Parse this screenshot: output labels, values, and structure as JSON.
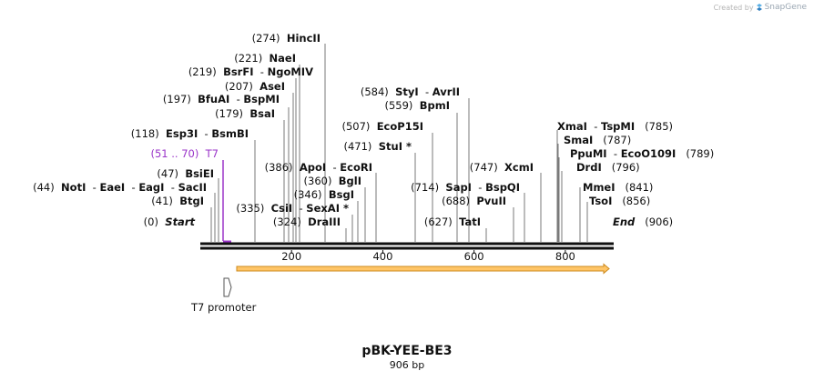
{
  "credit": {
    "prefix": "Created by",
    "brand": "SnapGene"
  },
  "plasmid": {
    "name": "pBK-YEE-BE3",
    "length_label": "906 bp",
    "length": 906
  },
  "axis": {
    "ticks": [
      "200",
      "400",
      "600",
      "800"
    ]
  },
  "colors": {
    "feature": "#9a34c9",
    "orf_fill": "#ffc567",
    "orf_stroke": "#cc8a1c",
    "line": "#111111"
  },
  "left_labels": [
    {
      "pos": "(274)",
      "parts": [
        "HincII"
      ]
    },
    {
      "pos": "(221)",
      "parts": [
        "NaeI"
      ]
    },
    {
      "pos": "(219)",
      "parts": [
        "BsrFI",
        "NgoMIV"
      ]
    },
    {
      "pos": "(207)",
      "parts": [
        "AseI"
      ]
    },
    {
      "pos": "(197)",
      "parts": [
        "BfuAI",
        "BspMI"
      ]
    },
    {
      "pos": "(179)",
      "parts": [
        "BsaI"
      ]
    },
    {
      "pos": "(118)",
      "parts": [
        "Esp3I",
        "BsmBI"
      ]
    },
    {
      "pos": "(47)",
      "parts": [
        "BsiEI"
      ]
    },
    {
      "pos": "(44)",
      "parts": [
        "NotI",
        "EaeI",
        "EagI",
        "SacII"
      ]
    },
    {
      "pos": "(41)",
      "parts": [
        "BtgI"
      ]
    },
    {
      "pos": "(0)",
      "parts": [
        "Start"
      ]
    },
    {
      "pos": "(386)",
      "parts": [
        "ApoI",
        "EcoRI"
      ]
    },
    {
      "pos": "(360)",
      "parts": [
        "BglI"
      ]
    },
    {
      "pos": "(346)",
      "parts": [
        "BsgI"
      ]
    },
    {
      "pos": "(335)",
      "parts": [
        "CsiI",
        "SexAI *"
      ]
    },
    {
      "pos": "(324)",
      "parts": [
        "DraIII"
      ]
    },
    {
      "pos": "(584)",
      "parts": [
        "StyI",
        "AvrII"
      ]
    },
    {
      "pos": "(559)",
      "parts": [
        "BpmI"
      ]
    },
    {
      "pos": "(507)",
      "parts": [
        "EcoP15I"
      ]
    },
    {
      "pos": "(471)",
      "parts": [
        "StuI *"
      ]
    },
    {
      "pos": "(747)",
      "parts": [
        "XcmI"
      ]
    },
    {
      "pos": "(714)",
      "parts": [
        "SapI",
        "BspQI"
      ]
    },
    {
      "pos": "(688)",
      "parts": [
        "PvuII"
      ]
    },
    {
      "pos": "(627)",
      "parts": [
        "TatI"
      ]
    }
  ],
  "right_labels": [
    {
      "parts": [
        "XmaI",
        "TspMI"
      ],
      "pos": "(785)"
    },
    {
      "parts": [
        "SmaI"
      ],
      "pos": "(787)"
    },
    {
      "parts": [
        "PpuMI",
        "EcoO109I"
      ],
      "pos": "(789)"
    },
    {
      "parts": [
        "DrdI"
      ],
      "pos": "(796)"
    },
    {
      "parts": [
        "MmeI"
      ],
      "pos": "(841)"
    },
    {
      "parts": [
        "TsoI"
      ],
      "pos": "(856)"
    },
    {
      "parts": [
        "End"
      ],
      "pos": "(906)"
    }
  ],
  "feature_label": {
    "pos": "(51 .. 70)",
    "name": "T7"
  },
  "promoter_label": "T7 promoter"
}
